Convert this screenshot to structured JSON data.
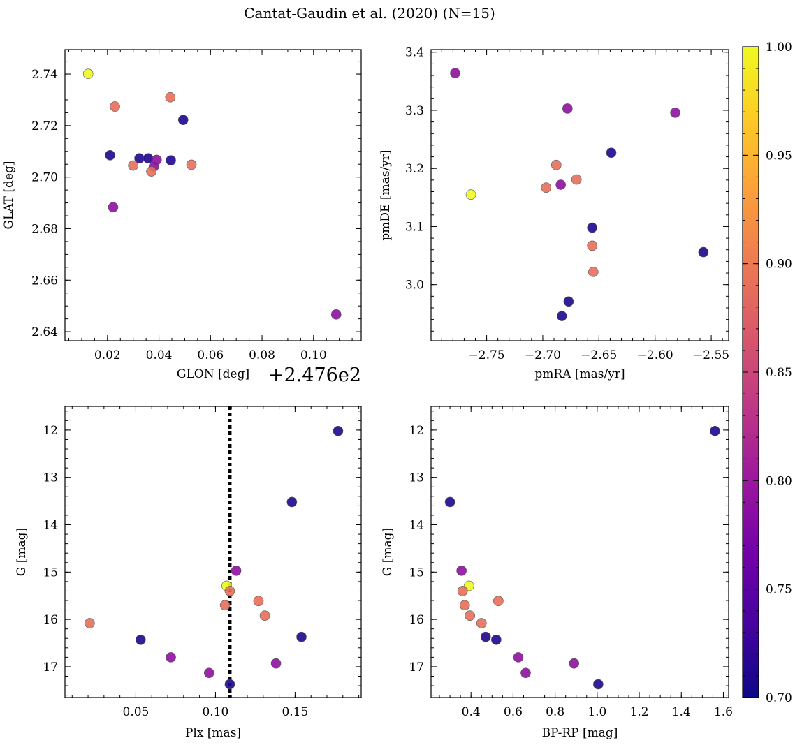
{
  "title": "Cantat-Gaudin et al. (2020) (N=15)",
  "chart_data": [
    {
      "id": "glon-glat",
      "type": "scatter",
      "xlabel": "GLON [deg]",
      "ylabel": "GLAT [deg]",
      "x_offset_label": "+2.476e2",
      "xlim": [
        0.0035,
        0.1185
      ],
      "ylim": [
        2.6365,
        2.7495
      ],
      "invert_y": false,
      "xticks": [
        0.02,
        0.04,
        0.06,
        0.08,
        0.1
      ],
      "xticklabels": [
        "0.02",
        "0.04",
        "0.06",
        "0.08",
        "0.10"
      ],
      "xminor": 0.005,
      "yticks": [
        2.64,
        2.66,
        2.68,
        2.7,
        2.72,
        2.74
      ],
      "yticklabels": [
        "2.64",
        "2.66",
        "2.68",
        "2.70",
        "2.72",
        "2.74"
      ],
      "yminor": 0.005,
      "x": [
        0.0125,
        0.0229,
        0.0444,
        0.0494,
        0.021,
        0.0324,
        0.0358,
        0.0446,
        0.0391,
        0.03,
        0.0526,
        0.038,
        0.037,
        0.0222,
        0.1088
      ],
      "y": [
        2.7401,
        2.7274,
        2.731,
        2.7222,
        2.7085,
        2.7073,
        2.7073,
        2.7065,
        2.7067,
        2.7045,
        2.7048,
        2.7041,
        2.7022,
        2.6883,
        2.6467
      ],
      "c": [
        1.0,
        0.89,
        0.89,
        0.71,
        0.71,
        0.71,
        0.71,
        0.71,
        0.79,
        0.89,
        0.89,
        0.79,
        0.89,
        0.79,
        0.79
      ]
    },
    {
      "id": "pmra-pmde",
      "type": "scatter",
      "xlabel": "pmRA [mas/yr]",
      "ylabel": "pmDE [mas/yr]",
      "xlim": [
        -2.7995,
        -2.5345
      ],
      "ylim": [
        2.9035,
        3.4045
      ],
      "invert_y": false,
      "xticks": [
        -2.75,
        -2.7,
        -2.65,
        -2.6,
        -2.55
      ],
      "xticklabels": [
        "−2.75",
        "−2.70",
        "−2.65",
        "−2.60",
        "−2.55"
      ],
      "xminor": 0.01,
      "yticks": [
        3.0,
        3.1,
        3.2,
        3.3,
        3.4
      ],
      "yticklabels": [
        "3.0",
        "3.1",
        "3.2",
        "3.3",
        "3.4"
      ],
      "yminor": 0.02,
      "x": [
        -2.778,
        -2.678,
        -2.582,
        -2.639,
        -2.688,
        -2.67,
        -2.684,
        -2.697,
        -2.764,
        -2.656,
        -2.557,
        -2.656,
        -2.655,
        -2.677,
        -2.683
      ],
      "y": [
        3.364,
        3.303,
        3.296,
        3.227,
        3.206,
        3.181,
        3.172,
        3.167,
        3.155,
        3.098,
        3.056,
        3.067,
        3.022,
        2.971,
        2.946
      ],
      "c": [
        0.79,
        0.79,
        0.79,
        0.71,
        0.89,
        0.89,
        0.79,
        0.89,
        1.0,
        0.71,
        0.71,
        0.89,
        0.89,
        0.71,
        0.71
      ]
    },
    {
      "id": "plx-g",
      "type": "scatter",
      "xlabel": "Plx [mas]",
      "ylabel": "G [mag]",
      "xlim": [
        0.0055,
        0.1915
      ],
      "ylim": [
        11.5,
        17.65
      ],
      "invert_y": true,
      "xticks": [
        0.05,
        0.1,
        0.15
      ],
      "xticklabels": [
        "0.05",
        "0.10",
        "0.15"
      ],
      "xminor": 0.01,
      "yticks": [
        12,
        13,
        14,
        15,
        16,
        17
      ],
      "yticklabels": [
        "12",
        "13",
        "14",
        "15",
        "16",
        "17"
      ],
      "yminor": 0.2,
      "vline": {
        "x": 0.109,
        "style": "dotted",
        "color": "#000000"
      },
      "x": [
        0.177,
        0.148,
        0.113,
        0.107,
        0.109,
        0.127,
        0.131,
        0.106,
        0.021,
        0.154,
        0.053,
        0.072,
        0.138,
        0.096,
        0.109
      ],
      "y": [
        12.02,
        13.52,
        14.97,
        15.29,
        15.4,
        15.61,
        15.92,
        15.7,
        16.08,
        16.37,
        16.43,
        16.8,
        16.93,
        17.13,
        17.37
      ],
      "c": [
        0.71,
        0.71,
        0.79,
        1.0,
        0.89,
        0.89,
        0.89,
        0.89,
        0.89,
        0.71,
        0.71,
        0.79,
        0.79,
        0.79,
        0.71
      ]
    },
    {
      "id": "bprp-g",
      "type": "scatter",
      "xlabel": "BP-RP [mag]",
      "ylabel": "G [mag]",
      "xlim": [
        0.21,
        1.625
      ],
      "ylim": [
        11.5,
        17.65
      ],
      "invert_y": true,
      "xticks": [
        0.4,
        0.6,
        0.8,
        1.0,
        1.2,
        1.4,
        1.6
      ],
      "xticklabels": [
        "0.4",
        "0.6",
        "0.8",
        "1.0",
        "1.2",
        "1.4",
        "1.6"
      ],
      "xminor": 0.05,
      "yticks": [
        12,
        13,
        14,
        15,
        16,
        17
      ],
      "yticklabels": [
        "12",
        "13",
        "14",
        "15",
        "16",
        "17"
      ],
      "yminor": 0.2,
      "x": [
        1.56,
        0.3,
        0.355,
        0.39,
        0.36,
        0.53,
        0.37,
        0.395,
        0.45,
        0.47,
        0.52,
        0.625,
        0.89,
        0.66,
        1.005
      ],
      "y": [
        12.02,
        13.52,
        14.97,
        15.29,
        15.4,
        15.61,
        15.7,
        15.92,
        16.08,
        16.37,
        16.43,
        16.8,
        16.93,
        17.13,
        17.37
      ],
      "c": [
        0.71,
        0.71,
        0.79,
        1.0,
        0.89,
        0.89,
        0.89,
        0.89,
        0.89,
        0.71,
        0.71,
        0.79,
        0.79,
        0.79,
        0.71
      ]
    }
  ],
  "colorbar": {
    "cmap": "plasma",
    "vmin": 0.7,
    "vmax": 1.0,
    "ticks": [
      0.7,
      0.75,
      0.8,
      0.85,
      0.9,
      0.95,
      1.0
    ],
    "ticklabels": [
      "0.70",
      "0.75",
      "0.80",
      "0.85",
      "0.90",
      "0.95",
      "1.00"
    ],
    "minor": 0.01
  },
  "colors": {
    "cmap_stops": [
      "#0d0887",
      "#46039f",
      "#7201a8",
      "#9c179e",
      "#bd3786",
      "#d8576b",
      "#ed7953",
      "#fb9f3a",
      "#fdca26",
      "#f0f921"
    ],
    "marker_edge": "#555555",
    "axes": "#000000"
  }
}
